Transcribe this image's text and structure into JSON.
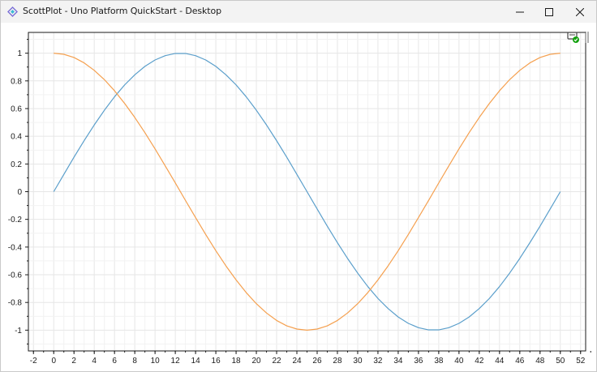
{
  "window": {
    "title": "ScottPlot - Uno Platform QuickStart - Desktop",
    "icons": {
      "app": "uno-platform-icon",
      "minimize": "minimize-icon",
      "maximize": "maximize-icon",
      "close": "close-icon",
      "hot_reload": "hot-reload-status-icon",
      "drag_handle": "drag-handle-icon"
    }
  },
  "colors": {
    "series_sin": "#5b9fcb",
    "series_cos": "#f5a04f",
    "grid": "#e6e6e6",
    "axis": "#1a1a1a",
    "status_ok": "#13a10e"
  },
  "chart_data": {
    "type": "line",
    "title": "",
    "xlabel": "",
    "ylabel": "",
    "xlim": [
      -2.5,
      52.5
    ],
    "ylim": [
      -1.15,
      1.15
    ],
    "x_ticks": [
      "-2",
      "0",
      "2",
      "4",
      "6",
      "8",
      "10",
      "12",
      "14",
      "16",
      "18",
      "20",
      "22",
      "24",
      "26",
      "28",
      "30",
      "32",
      "34",
      "36",
      "38",
      "40",
      "42",
      "44",
      "46",
      "48",
      "50",
      "52"
    ],
    "y_ticks": [
      "1",
      "0.8",
      "0.6",
      "0.4",
      "0.2",
      "0",
      "-0.2",
      "-0.4",
      "-0.6",
      "-0.8",
      "-1"
    ],
    "grid": true,
    "legend": "none",
    "series": [
      {
        "x": [
          0,
          1,
          2,
          3,
          4,
          5,
          6,
          7,
          8,
          9,
          10,
          11,
          12,
          13,
          14,
          15,
          16,
          17,
          18,
          19,
          20,
          21,
          22,
          23,
          24,
          25,
          26,
          27,
          28,
          29,
          30,
          31,
          32,
          33,
          34,
          35,
          36,
          37,
          38,
          39,
          40,
          41,
          42,
          43,
          44,
          45,
          46,
          47,
          48,
          49,
          50
        ],
        "values": [
          0,
          0.125,
          0.249,
          0.368,
          0.482,
          0.588,
          0.685,
          0.771,
          0.844,
          0.905,
          0.951,
          0.982,
          0.998,
          0.998,
          0.982,
          0.951,
          0.905,
          0.844,
          0.771,
          0.685,
          0.588,
          0.482,
          0.368,
          0.249,
          0.125,
          0,
          -0.125,
          -0.249,
          -0.368,
          -0.482,
          -0.588,
          -0.685,
          -0.771,
          -0.844,
          -0.905,
          -0.951,
          -0.982,
          -0.998,
          -0.998,
          -0.982,
          -0.951,
          -0.905,
          -0.844,
          -0.771,
          -0.685,
          -0.588,
          -0.482,
          -0.368,
          -0.249,
          -0.125,
          0
        ]
      },
      {
        "x": [
          0,
          1,
          2,
          3,
          4,
          5,
          6,
          7,
          8,
          9,
          10,
          11,
          12,
          13,
          14,
          15,
          16,
          17,
          18,
          19,
          20,
          21,
          22,
          23,
          24,
          25,
          26,
          27,
          28,
          29,
          30,
          31,
          32,
          33,
          34,
          35,
          36,
          37,
          38,
          39,
          40,
          41,
          42,
          43,
          44,
          45,
          46,
          47,
          48,
          49,
          50
        ],
        "values": [
          1,
          0.992,
          0.969,
          0.93,
          0.876,
          0.809,
          0.729,
          0.637,
          0.536,
          0.426,
          0.309,
          0.187,
          0.063,
          -0.063,
          -0.187,
          -0.309,
          -0.426,
          -0.536,
          -0.637,
          -0.729,
          -0.809,
          -0.876,
          -0.93,
          -0.969,
          -0.992,
          -1,
          -0.992,
          -0.969,
          -0.93,
          -0.876,
          -0.809,
          -0.729,
          -0.637,
          -0.536,
          -0.426,
          -0.309,
          -0.187,
          -0.063,
          0.063,
          0.187,
          0.309,
          0.426,
          0.536,
          0.637,
          0.729,
          0.809,
          0.876,
          0.93,
          0.969,
          0.992,
          1
        ]
      }
    ]
  }
}
